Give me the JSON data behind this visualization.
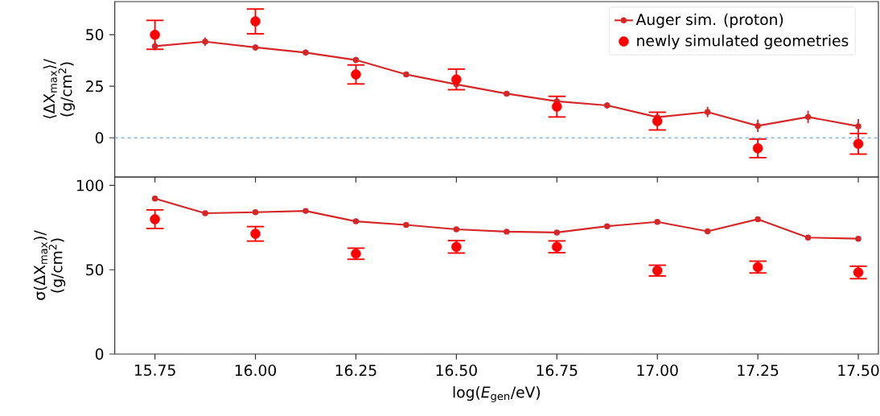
{
  "chart_data": [
    {
      "type": "line",
      "ylabel": "⟨ΔX$_{max}$⟩/ (g/cm$^{2}$)",
      "xlim": [
        15.65,
        17.55
      ],
      "ylim": [
        -19,
        66
      ],
      "xticks": [
        15.75,
        16,
        16.25,
        16.5,
        16.75,
        17,
        17.25,
        17.5
      ],
      "yticks": [
        0,
        25,
        50
      ],
      "tick_labels": "y",
      "grid": false,
      "legend": "top right",
      "ref_lines": [
        {
          "axis": "y",
          "value": 0,
          "color": "#8ab9dd",
          "line_style": "dashed"
        }
      ],
      "series": [
        {
          "name": "Auger sim. (proton)",
          "color": "#d62728",
          "marker": "circle",
          "x": [
            15.75,
            15.875,
            16.0,
            16.125,
            16.25,
            16.375,
            16.5,
            16.625,
            16.75,
            16.875,
            17.0,
            17.125,
            17.25,
            17.375,
            17.5
          ],
          "values": [
            44.4,
            46.6,
            43.8,
            41.3,
            37.7,
            30.7,
            25.9,
            21.4,
            17.7,
            15.7,
            10.0,
            12.5,
            5.8,
            10.1,
            5.6
          ],
          "errors": [
            2,
            2,
            1.5,
            1.5,
            1.5,
            1,
            1,
            1,
            1.5,
            1.5,
            1.5,
            2.5,
            3,
            3,
            3.5
          ]
        },
        {
          "name": "newly simulated geometries",
          "type": "scatter",
          "color": "#ff0000",
          "marker": "circle",
          "x": [
            15.75,
            16.0,
            16.25,
            16.5,
            16.75,
            17.0,
            17.25,
            17.5
          ],
          "values": [
            49.9,
            56.4,
            30.7,
            28.3,
            15.1,
            8.1,
            -5.1,
            -2.9
          ],
          "errors": [
            7,
            6,
            4.6,
            5,
            5,
            4.3,
            4.5,
            5
          ]
        }
      ]
    },
    {
      "type": "line",
      "ylabel": "σ(ΔX$_{max}$)/ (g/cm$^{2}$)",
      "xlabel": "log(*E*$_{gen}$/eV)",
      "xlim": [
        15.65,
        17.55
      ],
      "ylim": [
        0,
        105
      ],
      "xticks": [
        15.75,
        {
          "value": 16,
          "label": "16.00"
        },
        16.25,
        {
          "value": 16.5,
          "label": "16.50"
        },
        16.75,
        {
          "value": 17,
          "label": "17.00"
        },
        17.25,
        {
          "value": 17.5,
          "label": "17.50"
        }
      ],
      "yticks": [
        0,
        50,
        100
      ],
      "grid": false,
      "series": [
        {
          "color": "#d62728",
          "marker": "circle",
          "x": [
            15.75,
            15.875,
            16.0,
            16.125,
            16.25,
            16.375,
            16.5,
            16.625,
            16.75,
            16.875,
            17.0,
            17.125,
            17.25,
            17.375,
            17.5
          ],
          "values": [
            92.2,
            83.5,
            84.1,
            84.9,
            78.7,
            76.6,
            74.0,
            72.6,
            72.1,
            75.8,
            78.4,
            72.8,
            80.0,
            69.1,
            68.4
          ]
        },
        {
          "type": "scatter",
          "color": "#ff0000",
          "marker": "circle",
          "x": [
            15.75,
            16.0,
            16.25,
            16.5,
            16.75,
            17.0,
            17.25,
            17.5
          ],
          "values": [
            80.0,
            71.3,
            59.5,
            63.6,
            63.6,
            49.5,
            51.6,
            48.4
          ],
          "errors": [
            5.5,
            4.3,
            3.3,
            3.7,
            3.5,
            3.2,
            3.5,
            3.7
          ]
        }
      ]
    }
  ]
}
